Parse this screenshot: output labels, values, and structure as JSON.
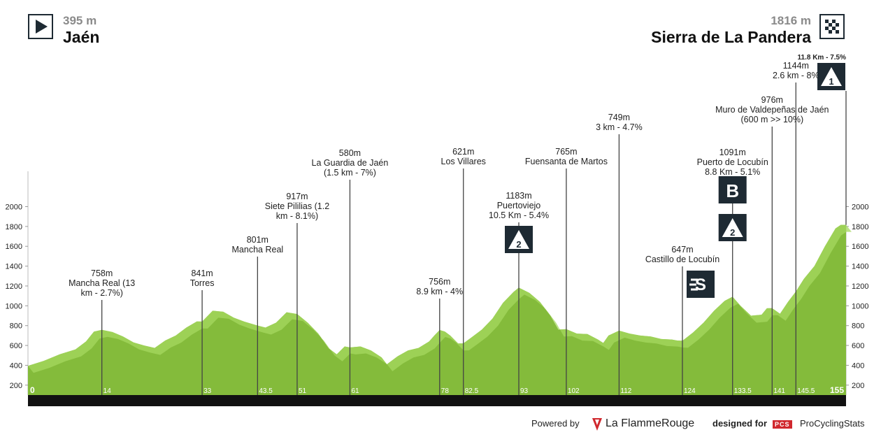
{
  "header": {
    "start_altitude": "395 m",
    "start_place": "Jaén",
    "finish_altitude": "1816 m",
    "finish_place": "Sierra de La Pandera",
    "start_icon": "play-icon",
    "finish_icon": "checkered-flag-icon"
  },
  "footer": {
    "powered_by": "Powered by",
    "partner": "La FlammeRouge",
    "designed_for": "designed for",
    "pcs_badge": "PCS",
    "brand": "ProCyclingStats"
  },
  "chart_data": {
    "type": "area",
    "ylim": [
      100,
      2050
    ],
    "xlim": [
      0,
      155
    ],
    "yticks": [
      200,
      400,
      600,
      800,
      1000,
      1200,
      1400,
      1600,
      1800,
      2000
    ],
    "colors": {
      "fill": "#84bb3b",
      "ridge": "#a6d860",
      "axis": "#111111",
      "marker": "#444444",
      "km_label": "#ffffff"
    },
    "profile": [
      [
        0,
        395
      ],
      [
        3,
        445
      ],
      [
        6,
        510
      ],
      [
        9,
        560
      ],
      [
        11,
        640
      ],
      [
        12.5,
        740
      ],
      [
        14,
        758
      ],
      [
        16,
        735
      ],
      [
        18,
        690
      ],
      [
        20,
        630
      ],
      [
        22,
        600
      ],
      [
        24,
        575
      ],
      [
        26,
        650
      ],
      [
        28,
        700
      ],
      [
        30,
        780
      ],
      [
        32,
        842
      ],
      [
        33,
        841
      ],
      [
        35,
        950
      ],
      [
        37,
        940
      ],
      [
        39,
        880
      ],
      [
        41,
        840
      ],
      [
        43.5,
        801
      ],
      [
        45,
        780
      ],
      [
        47,
        830
      ],
      [
        49,
        935
      ],
      [
        51,
        917
      ],
      [
        53,
        830
      ],
      [
        55,
        720
      ],
      [
        57,
        570
      ],
      [
        58.5,
        510
      ],
      [
        60,
        590
      ],
      [
        61,
        580
      ],
      [
        63,
        590
      ],
      [
        65,
        550
      ],
      [
        67,
        480
      ],
      [
        68,
        410
      ],
      [
        70,
        490
      ],
      [
        72,
        550
      ],
      [
        74,
        575
      ],
      [
        76,
        640
      ],
      [
        77,
        700
      ],
      [
        78,
        756
      ],
      [
        79,
        740
      ],
      [
        80,
        700
      ],
      [
        81.5,
        620
      ],
      [
        82.5,
        621
      ],
      [
        84,
        680
      ],
      [
        86,
        760
      ],
      [
        88,
        870
      ],
      [
        90,
        1030
      ],
      [
        92,
        1140
      ],
      [
        93,
        1183
      ],
      [
        95,
        1130
      ],
      [
        97,
        1040
      ],
      [
        99,
        900
      ],
      [
        100.5,
        760
      ],
      [
        102,
        765
      ],
      [
        104,
        720
      ],
      [
        106,
        715
      ],
      [
        108,
        660
      ],
      [
        109,
        625
      ],
      [
        110,
        700
      ],
      [
        112,
        749
      ],
      [
        114,
        720
      ],
      [
        116,
        700
      ],
      [
        118,
        690
      ],
      [
        120,
        665
      ],
      [
        122,
        660
      ],
      [
        123,
        650
      ],
      [
        124,
        647
      ],
      [
        126,
        730
      ],
      [
        128,
        830
      ],
      [
        130,
        950
      ],
      [
        132,
        1050
      ],
      [
        133.5,
        1091
      ],
      [
        135,
        1000
      ],
      [
        137,
        900
      ],
      [
        139,
        910
      ],
      [
        140,
        975
      ],
      [
        141,
        976
      ],
      [
        142.5,
        920
      ],
      [
        144,
        1040
      ],
      [
        145.5,
        1144
      ],
      [
        147,
        1270
      ],
      [
        149,
        1400
      ],
      [
        151,
        1600
      ],
      [
        153,
        1780
      ],
      [
        154,
        1816
      ],
      [
        155,
        1816
      ]
    ],
    "km_ticks": [
      {
        "km": 0,
        "label": "0",
        "bold": true
      },
      {
        "km": 14,
        "label": "14",
        "bold": false
      },
      {
        "km": 33,
        "label": "33",
        "bold": false
      },
      {
        "km": 43.5,
        "label": "43.5",
        "bold": false
      },
      {
        "km": 51,
        "label": "51",
        "bold": false
      },
      {
        "km": 61,
        "label": "61",
        "bold": false
      },
      {
        "km": 78,
        "label": "78",
        "bold": false
      },
      {
        "km": 82.5,
        "label": "82.5",
        "bold": false
      },
      {
        "km": 93,
        "label": "93",
        "bold": false
      },
      {
        "km": 102,
        "label": "102",
        "bold": false
      },
      {
        "km": 112,
        "label": "112",
        "bold": false
      },
      {
        "km": 124,
        "label": "124",
        "bold": false
      },
      {
        "km": 133.5,
        "label": "133.5",
        "bold": false
      },
      {
        "km": 141,
        "label": "141",
        "bold": false
      },
      {
        "km": 145.5,
        "label": "145.5",
        "bold": false
      },
      {
        "km": 155,
        "label": "155",
        "bold": true
      }
    ],
    "annotations": [
      {
        "km": 14,
        "alt": 758,
        "lines": [
          "758m",
          "Mancha Real (13",
          "km - 2.7%)"
        ]
      },
      {
        "km": 33,
        "alt": 841,
        "lines": [
          "841m",
          "Torres"
        ]
      },
      {
        "km": 43.5,
        "alt": 801,
        "lines": [
          "801m",
          "Mancha Real"
        ]
      },
      {
        "km": 51,
        "alt": 917,
        "lines": [
          "917m",
          "Siete Pililias (1.2",
          "km - 8.1%)"
        ]
      },
      {
        "km": 61,
        "alt": 580,
        "lines": [
          "580m",
          "La Guardia de Jaén",
          "(1.5 km - 7%)"
        ]
      },
      {
        "km": 78,
        "alt": 756,
        "lines": [
          "756m",
          "8.9 km - 4%"
        ]
      },
      {
        "km": 82.5,
        "alt": 621,
        "lines": [
          "621m",
          "Los Villares"
        ]
      },
      {
        "km": 93,
        "alt": 1183,
        "lines": [
          "1183m",
          "Puertoviejo",
          "10.5 Km - 5.4%"
        ],
        "badge": "2"
      },
      {
        "km": 102,
        "alt": 765,
        "lines": [
          "765m",
          "Fuensanta de Martos"
        ]
      },
      {
        "km": 112,
        "alt": 749,
        "lines": [
          "749m",
          "3 km - 4.7%"
        ]
      },
      {
        "km": 124,
        "alt": 647,
        "lines": [
          "647m",
          "Castillo de Locubín"
        ],
        "badge": "S"
      },
      {
        "km": 133.5,
        "alt": 1091,
        "lines": [
          "1091m",
          "Puerto de Locubín",
          "8.8 Km - 5.1%"
        ],
        "badge": "2",
        "badge2": "B"
      },
      {
        "km": 141,
        "alt": 976,
        "lines": [
          "976m",
          "Muro de Valdepeñas de Jaén",
          "(600 m >> 10%)"
        ]
      },
      {
        "km": 145.5,
        "alt": 1144,
        "lines": [
          "1144m",
          "2.6 km - 8%"
        ]
      },
      {
        "km": 155,
        "alt": 1816,
        "lines": [
          "11.8 Km - 7.5%"
        ],
        "badge": "1"
      }
    ]
  }
}
